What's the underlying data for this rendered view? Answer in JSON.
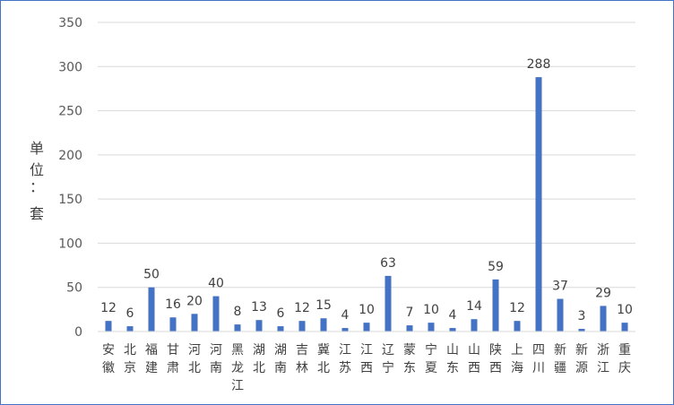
{
  "chart_data": {
    "type": "bar",
    "categories": [
      "安徽",
      "北京",
      "福建",
      "甘肃",
      "河北",
      "河南",
      "黑龙江",
      "湖北",
      "湖南",
      "吉林",
      "冀北",
      "江苏",
      "江西",
      "辽宁",
      "蒙东",
      "宁夏",
      "山东",
      "山西",
      "陕西",
      "上海",
      "四川",
      "新疆",
      "新源",
      "浙江",
      "重庆"
    ],
    "values": [
      12,
      6,
      50,
      16,
      20,
      40,
      8,
      13,
      6,
      12,
      15,
      4,
      10,
      63,
      7,
      10,
      4,
      14,
      59,
      12,
      288,
      37,
      3,
      29,
      10
    ],
    "title": "",
    "xlabel": "",
    "ylabel": "单位：套",
    "ylim": [
      0,
      350
    ],
    "yticks": [
      0,
      50,
      100,
      150,
      200,
      250,
      300,
      350
    ],
    "grid": true,
    "data_labels": true,
    "bar_color": "#4472c4",
    "grid_color": "#d9d9d9"
  }
}
